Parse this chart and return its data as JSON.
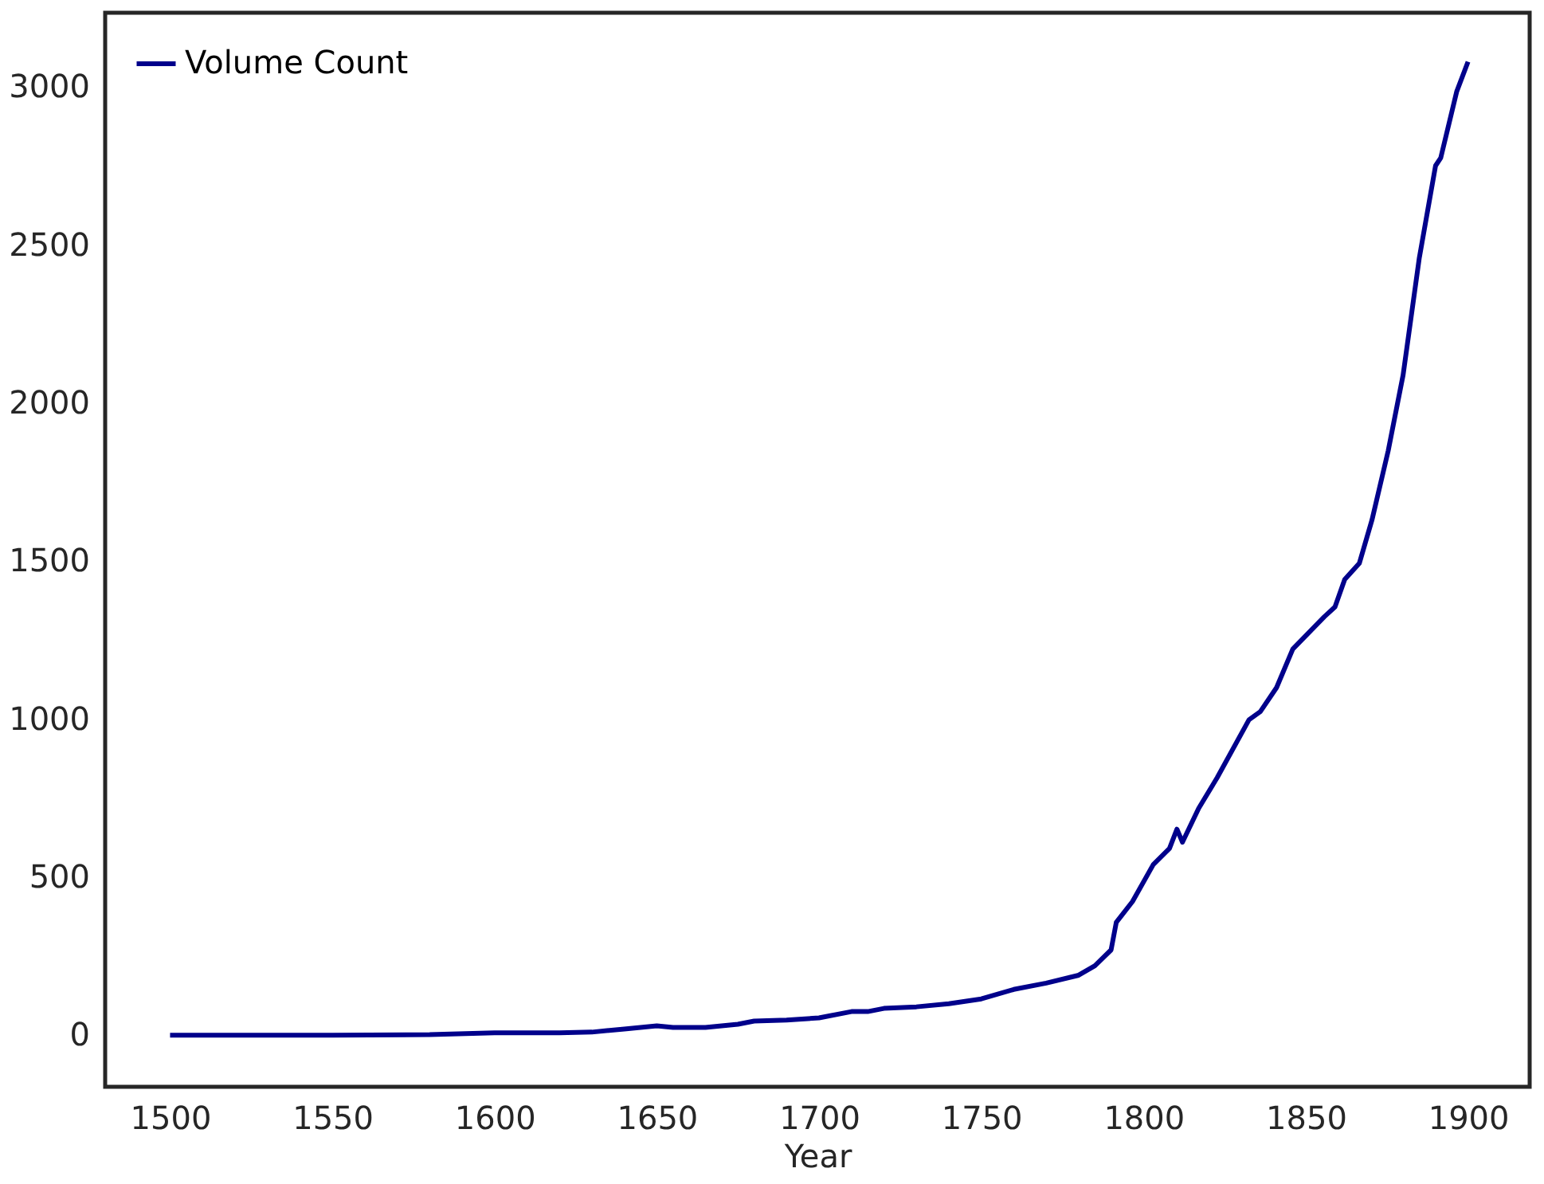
{
  "chart_data": {
    "type": "line",
    "xlabel": "Year",
    "x": [
      1500,
      1550,
      1580,
      1600,
      1620,
      1630,
      1640,
      1650,
      1655,
      1665,
      1675,
      1680,
      1690,
      1700,
      1710,
      1715,
      1720,
      1730,
      1740,
      1750,
      1760,
      1770,
      1780,
      1785,
      1790,
      1791.6,
      1796.6,
      1803,
      1808,
      1810.3,
      1812,
      1817,
      1822.7,
      1832.5,
      1836,
      1841,
      1846,
      1855.7,
      1859,
      1862,
      1866.5,
      1870.4,
      1875.4,
      1880,
      1885,
      1890,
      1891.6,
      1896.5,
      1900
    ],
    "series": [
      {
        "name": "Volume Count",
        "color": "#00008b",
        "values": [
          0,
          0,
          2,
          8,
          8,
          10,
          20,
          30,
          25,
          25,
          35,
          45,
          48,
          55,
          75,
          75,
          85,
          90,
          100,
          115,
          145,
          165,
          190,
          220,
          270,
          357,
          423,
          540,
          591,
          652,
          611,
          718,
          815,
          998,
          1024,
          1100,
          1222,
          1324,
          1355,
          1442,
          1493,
          1630,
          1849,
          2089,
          2460,
          2751,
          2776,
          2985,
          3080
        ]
      }
    ],
    "xlim": [
      1480,
      1919
    ],
    "ylim": [
      -163,
      3235
    ],
    "xticks": [
      1500,
      1550,
      1600,
      1650,
      1700,
      1750,
      1800,
      1850,
      1900
    ],
    "yticks": [
      0,
      500,
      1000,
      1500,
      2000,
      2500,
      3000
    ],
    "grid": false,
    "legend": "top left",
    "line_style": "solid",
    "marker": "none"
  }
}
